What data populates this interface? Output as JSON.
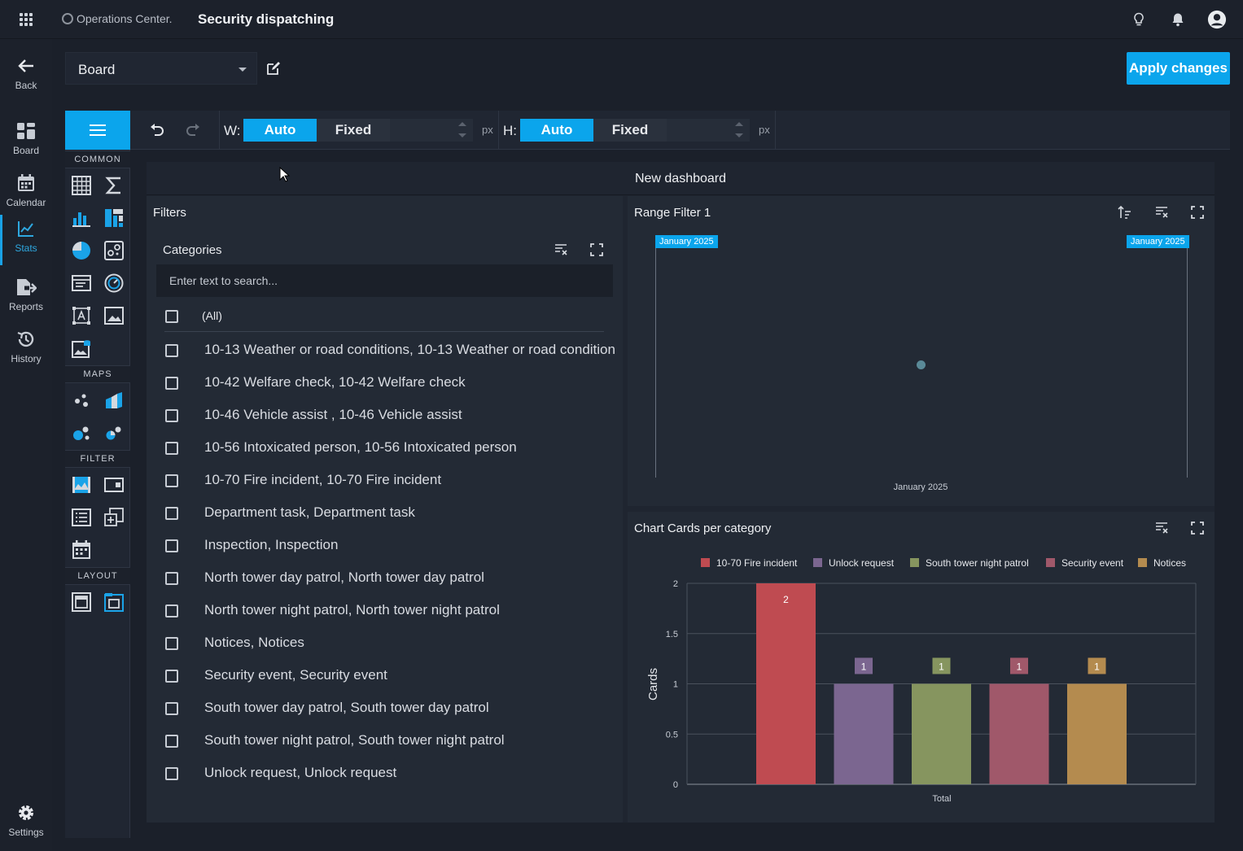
{
  "header": {
    "brand": "Operations Center.",
    "title": "Security dispatching",
    "icons": [
      "apps-grid-icon",
      "lightbulb-icon",
      "bell-icon",
      "user-avatar-icon"
    ]
  },
  "nav": {
    "back": "Back",
    "items": [
      {
        "label": "Board",
        "icon": "board-icon"
      },
      {
        "label": "Calendar",
        "icon": "calendar-icon"
      },
      {
        "label": "Stats",
        "icon": "chart-line-icon",
        "active": true
      },
      {
        "label": "Reports",
        "icon": "reports-export-icon"
      },
      {
        "label": "History",
        "icon": "history-icon"
      }
    ],
    "settings": "Settings"
  },
  "board": {
    "selected": "Board",
    "apply_label": "Apply changes"
  },
  "toolbox": {
    "sections": [
      "COMMON",
      "MAPS",
      "FILTER",
      "LAYOUT"
    ]
  },
  "designer": {
    "w_label": "W:",
    "h_label": "H:",
    "auto": "Auto",
    "fixed": "Fixed",
    "unit": "px",
    "width_mode": "Auto",
    "height_mode": "Auto"
  },
  "dashboard": {
    "title": "New dashboard",
    "filters": {
      "title": "Filters",
      "categories_title": "Categories",
      "search_placeholder": "Enter text to search...",
      "all_label": "(All)",
      "items": [
        "10-13 Weather or road conditions, 10-13 Weather or road condition",
        "10-42 Welfare check, 10-42 Welfare check",
        "10-46 Vehicle assist , 10-46 Vehicle assist",
        "10-56 Intoxicated person, 10-56 Intoxicated person",
        "10-70 Fire incident, 10-70 Fire incident",
        "Department task, Department task",
        "Inspection, Inspection",
        "North tower day patrol, North tower day patrol",
        "North tower night patrol, North tower night patrol",
        "Notices, Notices",
        "Security event, Security event",
        "South tower day patrol, South tower day patrol",
        "South tower night patrol, South tower night patrol",
        "Unlock request, Unlock request"
      ]
    },
    "range_filter": {
      "title": "Range Filter 1",
      "left_handle": "January 2025",
      "right_handle": "January 2025",
      "axis_label": "January 2025"
    },
    "chart_panel": {
      "title": "Chart Cards per category"
    }
  },
  "chart_data": {
    "type": "bar",
    "categories": [
      "Total"
    ],
    "series": [
      {
        "name": "10-70 Fire incident",
        "values": [
          2
        ],
        "color": "#bf4b51"
      },
      {
        "name": "Unlock request",
        "values": [
          1
        ],
        "color": "#7b6690"
      },
      {
        "name": "South tower night patrol",
        "values": [
          1
        ],
        "color": "#86955f"
      },
      {
        "name": "Security event",
        "values": [
          1
        ],
        "color": "#a0586a"
      },
      {
        "name": "Notices",
        "values": [
          1
        ],
        "color": "#b48b4f"
      }
    ],
    "ylabel": "Cards",
    "xlabel": "Total",
    "ylim": [
      0,
      2
    ],
    "yticks": [
      "0",
      "0.5",
      "1",
      "1.5",
      "2"
    ],
    "legend": "top",
    "grid": true
  },
  "colors": {
    "accent": "#0ba5ec",
    "background": "#1b202a"
  }
}
